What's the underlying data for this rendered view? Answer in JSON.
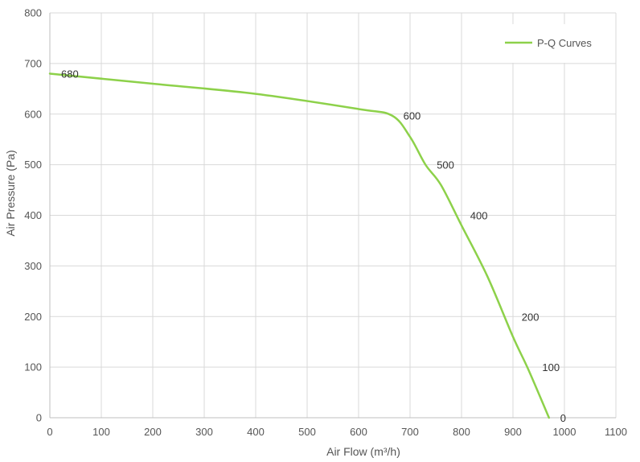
{
  "chart_data": {
    "type": "line",
    "title": "",
    "xlabel": "Air Flow  (m³/h)",
    "ylabel": "Air Pressure  (Pa)",
    "xlim": [
      0,
      1100
    ],
    "ylim": [
      0,
      800
    ],
    "x_ticks": [
      "0",
      "100",
      "200",
      "300",
      "400",
      "500",
      "600",
      "700",
      "800",
      "900",
      "1000",
      "1100"
    ],
    "y_ticks": [
      "0",
      "100",
      "200",
      "300",
      "400",
      "500",
      "600",
      "700",
      "800"
    ],
    "grid": true,
    "legend_position": "top-right",
    "series": [
      {
        "name": "P-Q Curves",
        "color": "#8dd14a",
        "x": [
          0,
          200,
          400,
          600,
          665,
          700,
          730,
          760,
          800,
          850,
          900,
          930,
          970
        ],
        "y": [
          680,
          660,
          640,
          610,
          597,
          555,
          500,
          460,
          380,
          280,
          160,
          95,
          0
        ]
      }
    ],
    "data_labels": [
      {
        "text": "680",
        "x": 0,
        "y": 680
      },
      {
        "text": "600",
        "x": 665,
        "y": 597
      },
      {
        "text": "500",
        "x": 730,
        "y": 500
      },
      {
        "text": "400",
        "x": 795,
        "y": 400
      },
      {
        "text": "200",
        "x": 895,
        "y": 200
      },
      {
        "text": "100",
        "x": 935,
        "y": 100
      },
      {
        "text": "0",
        "x": 970,
        "y": 0
      }
    ]
  }
}
